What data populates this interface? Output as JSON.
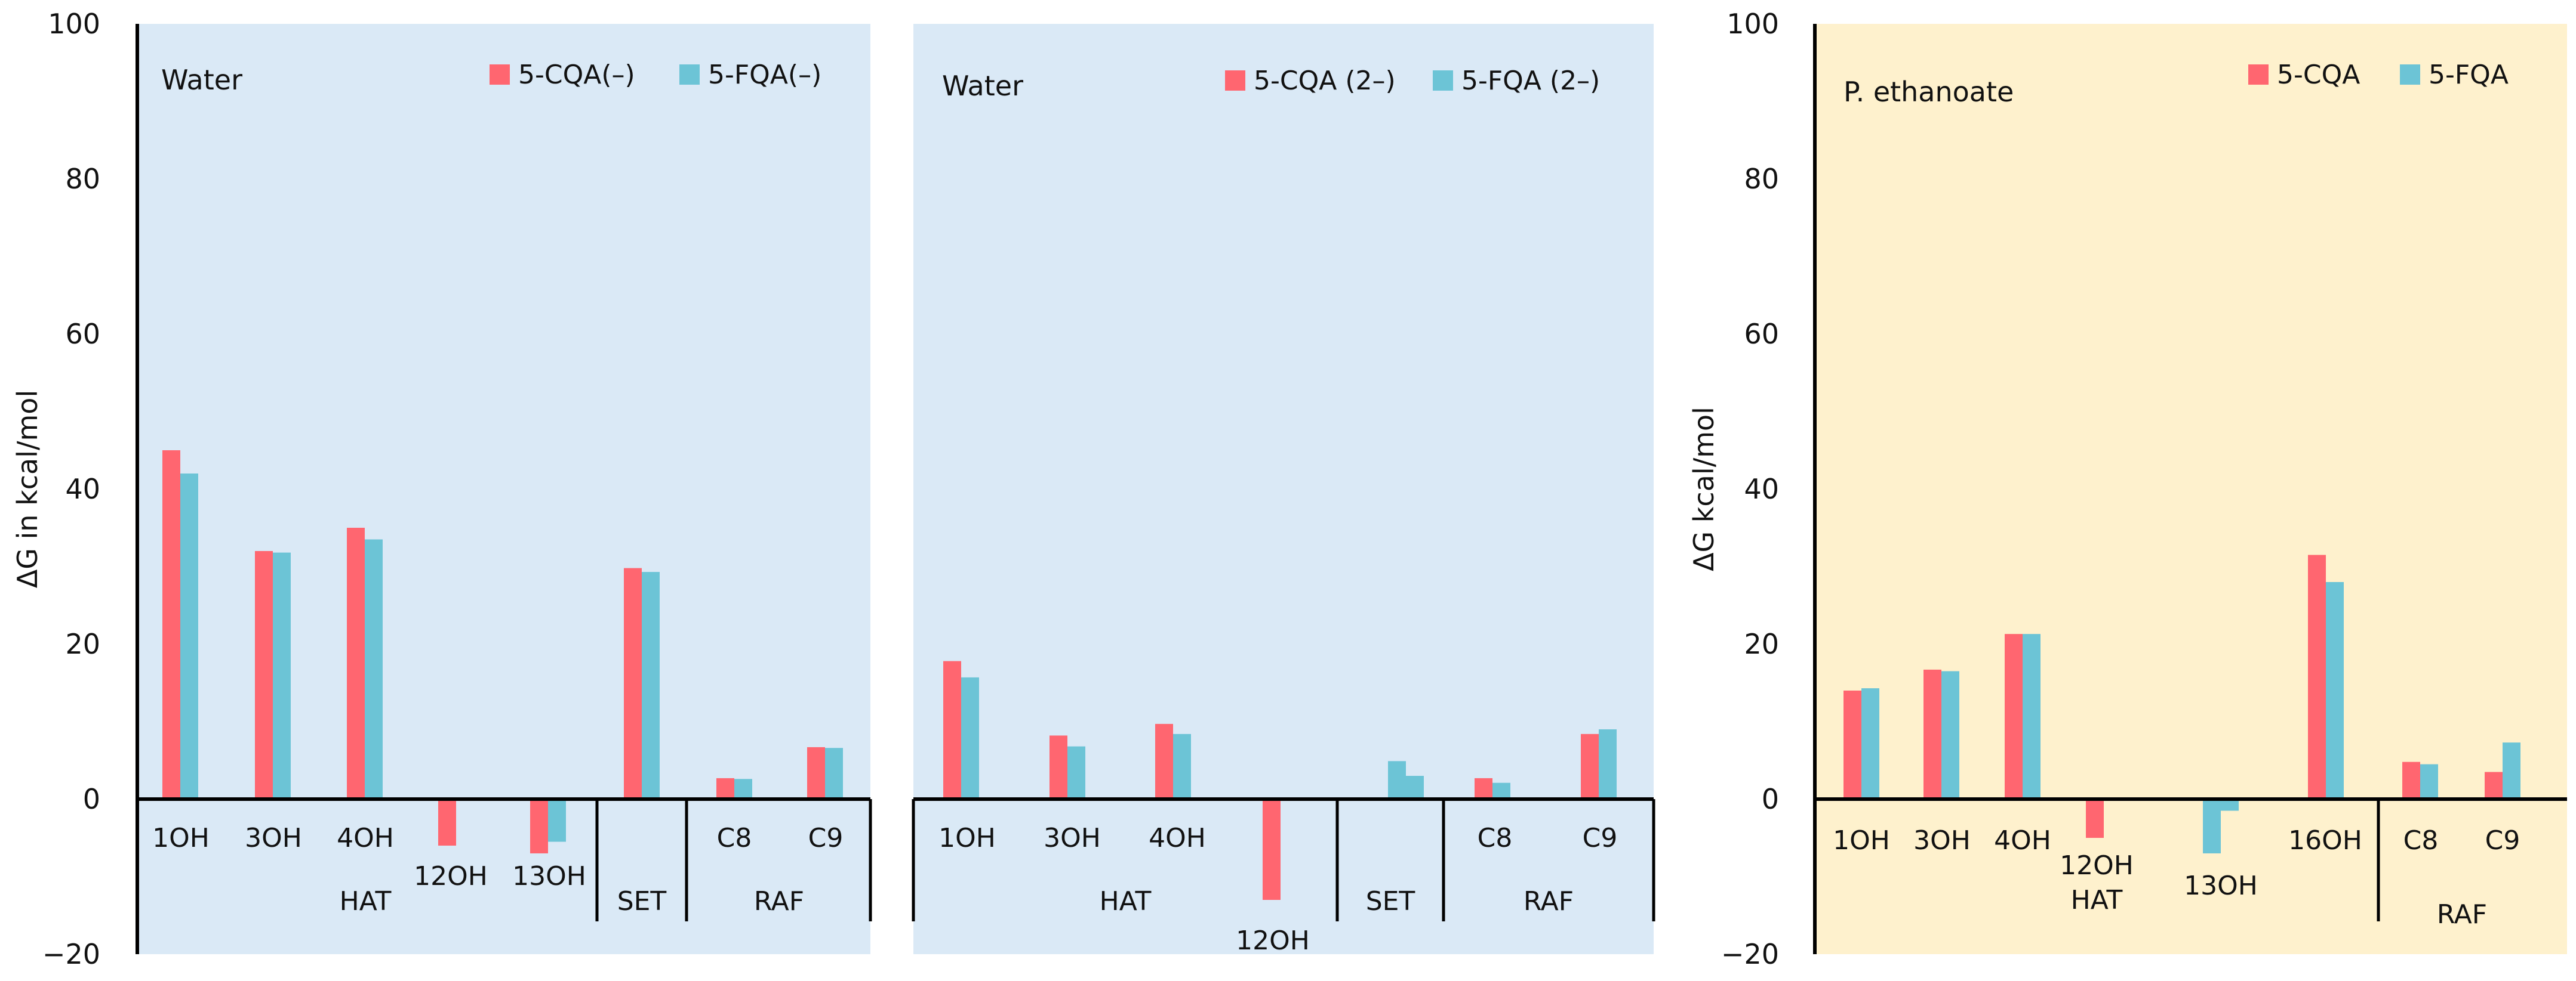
{
  "colors": {
    "cqa": "#FF6670",
    "fqa": "#6CC4D6",
    "water_bg": "#DAE9F6",
    "ethanoate_bg": "#FEF1CD"
  },
  "chart_data": [
    {
      "type": "bar",
      "panel_label": "Water",
      "ylabel": "ΔG in kcal/mol",
      "ylim": [
        -20,
        100
      ],
      "yticks": [
        "100",
        "80",
        "60",
        "40",
        "20",
        "0",
        "−20"
      ],
      "categories": [
        "1OH",
        "3OH",
        "4OH",
        "12OH",
        "13OH",
        "SET",
        "C8",
        "C9"
      ],
      "groups": [
        "HAT",
        "SET",
        "RAF"
      ],
      "series": [
        {
          "name": "5-CQA(–)",
          "values": [
            45.0,
            32.0,
            35.0,
            -6.0,
            -7.0,
            29.8,
            2.7,
            6.7
          ]
        },
        {
          "name": "5-FQA(–)",
          "values": [
            42.0,
            31.8,
            33.5,
            null,
            -5.5,
            29.3,
            2.6,
            6.6
          ]
        }
      ]
    },
    {
      "type": "bar",
      "panel_label": "Water",
      "ylim": [
        -20,
        100
      ],
      "categories": [
        "1OH",
        "3OH",
        "4OH",
        "12OH",
        "",
        "C8",
        "C9"
      ],
      "groups": [
        "HAT",
        "SET",
        "RAF"
      ],
      "series": [
        {
          "name": "5-CQA (2–)",
          "values": [
            17.8,
            8.2,
            9.7,
            -13.0,
            null,
            2.7,
            8.4
          ]
        },
        {
          "name": "5-FQA (2–)",
          "values": [
            15.7,
            6.8,
            8.4,
            null,
            4.9,
            2.1,
            9.0
          ]
        }
      ],
      "set_second_series_value": 3.0
    },
    {
      "type": "bar",
      "panel_label": "P. ethanoate",
      "ylabel": "ΔG kcal/mol",
      "ylim": [
        -20,
        100
      ],
      "yticks": [
        "100",
        "80",
        "60",
        "40",
        "20",
        "0",
        "−20"
      ],
      "categories": [
        "1OH",
        "3OH",
        "4OH",
        "12OH",
        "13OH",
        "16OH",
        "C8",
        "C9"
      ],
      "groups": [
        "HAT",
        "RAF"
      ],
      "series": [
        {
          "name": "5-CQA",
          "values": [
            14.0,
            16.7,
            21.3,
            -5.0,
            null,
            31.5,
            4.8,
            3.5
          ]
        },
        {
          "name": "5-FQA",
          "values": [
            14.3,
            16.5,
            21.3,
            null,
            -1.5,
            28.0,
            4.5,
            7.3
          ]
        }
      ],
      "second_13OH_value": -7.0
    }
  ]
}
